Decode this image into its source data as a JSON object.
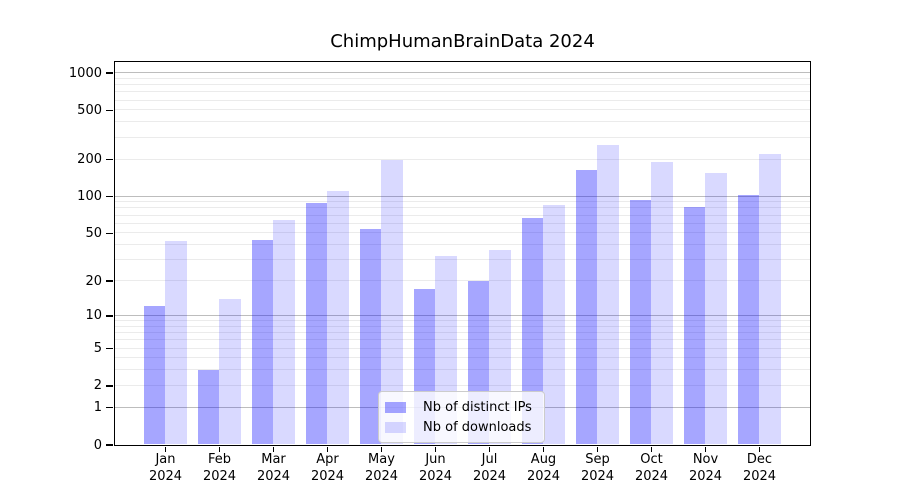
{
  "chart_data": {
    "type": "bar",
    "title": "ChimpHumanBrainData 2024",
    "categories": [
      "Jan",
      "Feb",
      "Mar",
      "Apr",
      "May",
      "Jun",
      "Jul",
      "Aug",
      "Sep",
      "Oct",
      "Nov",
      "Dec"
    ],
    "category_year": "2024",
    "series": [
      {
        "name": "Nb of distinct IPs",
        "color": "rgba(0,0,255,0.35)",
        "values": [
          12,
          3,
          44,
          88,
          54,
          17,
          20,
          66,
          164,
          93,
          82,
          103
        ]
      },
      {
        "name": "Nb of downloads",
        "color": "rgba(0,0,255,0.15)",
        "values": [
          43,
          14,
          64,
          110,
          195,
          32,
          36,
          85,
          258,
          188,
          155,
          220
        ]
      }
    ],
    "yscale": "log1p",
    "ylim": [
      0,
      1230
    ],
    "ytick_values": [
      1000,
      500,
      200,
      100,
      50,
      20,
      10,
      5,
      2,
      1,
      0
    ],
    "ytick_labels": [
      "1000",
      "500",
      "200",
      "100",
      "50",
      "20",
      "10",
      "5",
      "2",
      "1",
      "0"
    ],
    "major_gridline_values": [
      1,
      10,
      100,
      1000
    ],
    "minor_gridline_values": [
      2,
      3,
      4,
      5,
      6,
      7,
      8,
      9,
      20,
      30,
      40,
      50,
      60,
      70,
      80,
      90,
      200,
      300,
      400,
      500,
      600,
      700,
      800,
      900
    ],
    "grid": true,
    "legend_position": "lower center",
    "colors": {
      "distinct_ips_bar": "rgba(0,0,255,0.35)",
      "downloads_bar": "rgba(0,0,255,0.15)",
      "major_grid": "#bdbdbd",
      "minor_grid": "#ebebeb",
      "axis": "#000000",
      "text": "#000000"
    }
  }
}
